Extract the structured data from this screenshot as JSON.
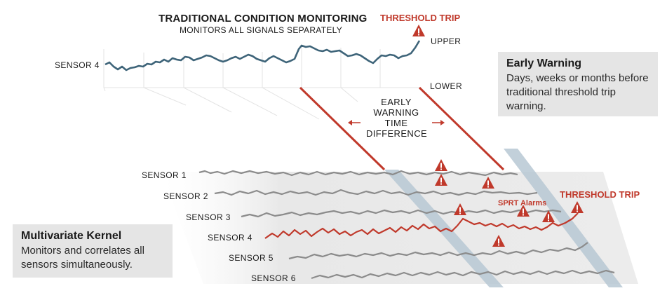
{
  "top": {
    "title": "TRADITIONAL CONDITION MONITORING",
    "subtitle": "MONITORS ALL SIGNALS SEPARATELY",
    "sensor_label": "SENSOR 4",
    "upper_label": "UPPER",
    "lower_label": "LOWER",
    "threshold_trip": "THRESHOLD TRIP"
  },
  "early_warning_diagram": {
    "lines": [
      "EARLY",
      "WARNING",
      "TIME",
      "DIFFERENCE"
    ]
  },
  "early_warning_card": {
    "heading": "Early Warning",
    "body": "Days, weeks or months before traditional threshold trip warning."
  },
  "kernel_card": {
    "heading": "Multivariate Kernel",
    "body": "Monitors and correlates all sensors simultaneously."
  },
  "bottom": {
    "sensors": [
      "SENSOR 1",
      "SENSOR 2",
      "SENSOR 3",
      "SENSOR 4",
      "SENSOR 5",
      "SENSOR 6"
    ],
    "sprt_alarms": "SPRT Alarms",
    "threshold_trip": "THRESHOLD TRIP"
  },
  "colors": {
    "signal_top": "#3e6479",
    "alarm_red": "#c0392b",
    "signal_gray": "#8c8c8c",
    "band": "#b7c8d3",
    "card_bg": "#e5e5e5"
  },
  "icons": [
    "warning-triangle-icon",
    "arrow-left-icon",
    "arrow-right-icon"
  ]
}
